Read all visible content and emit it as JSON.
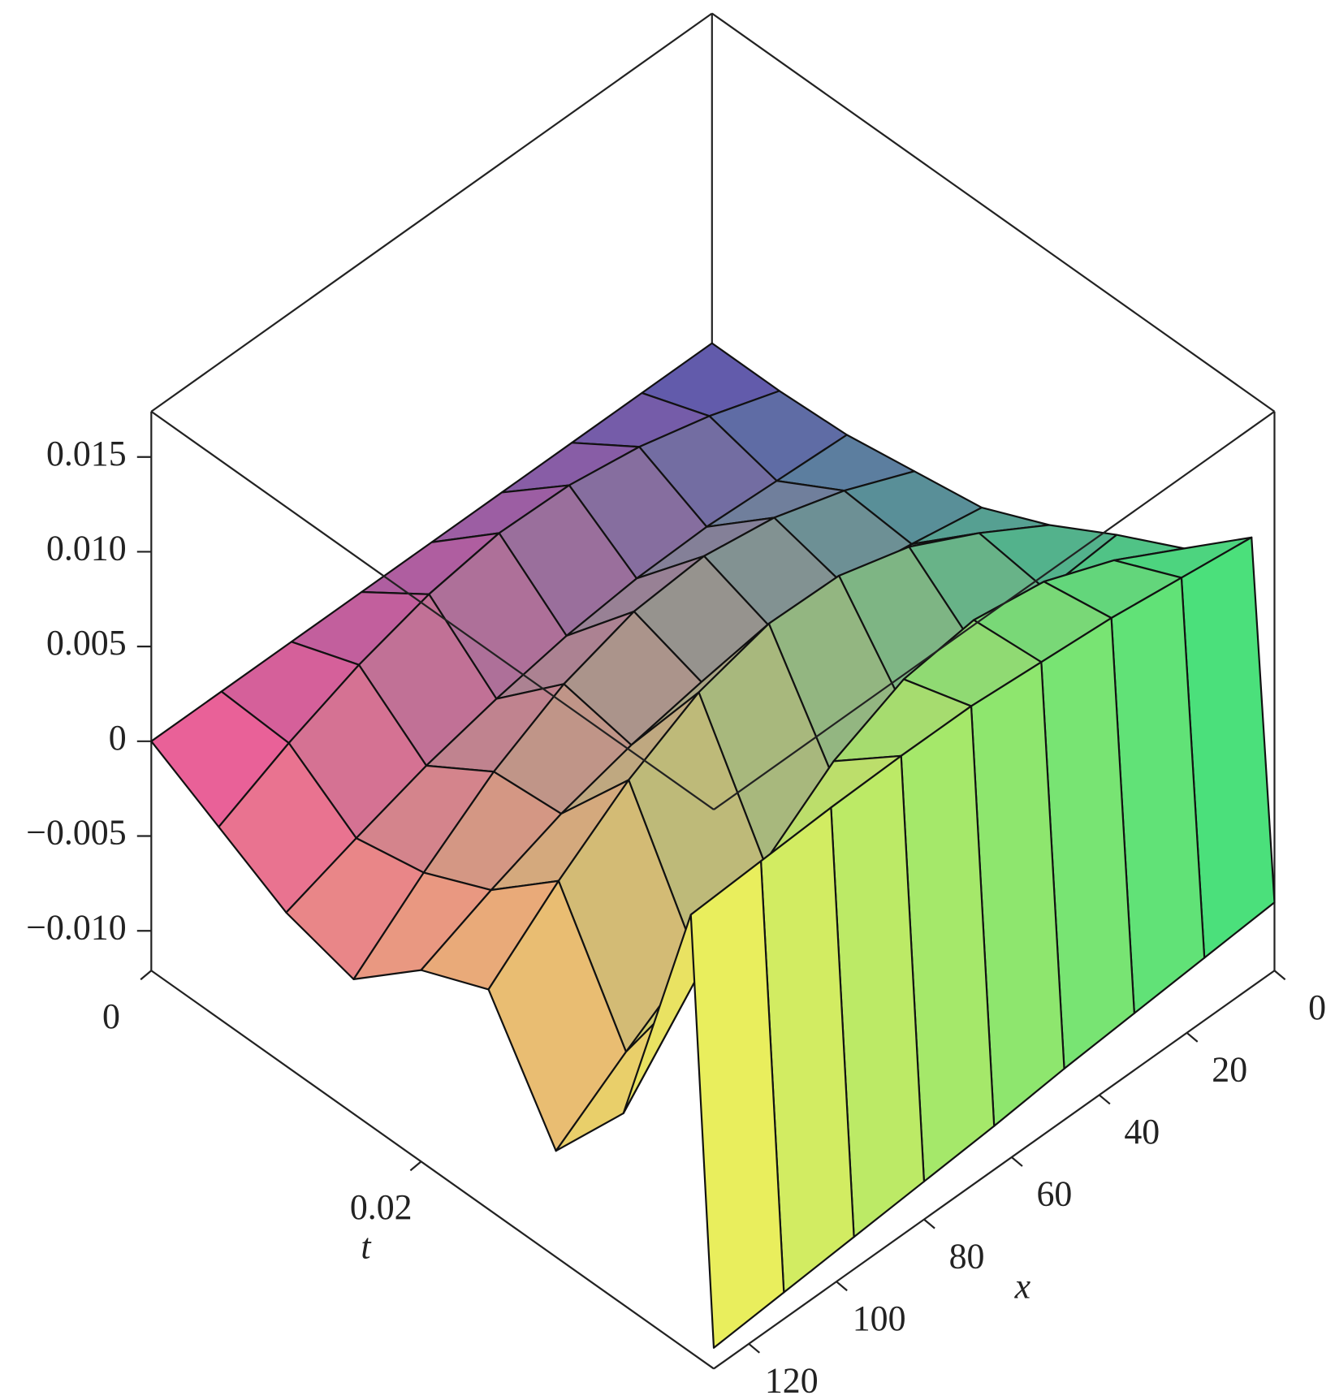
{
  "chart_data": {
    "type": "surface3d",
    "xlabel": "x",
    "tlabel": "t",
    "tlim": [
      0,
      0.0417
    ],
    "xlim": [
      0,
      128
    ],
    "zlim": [
      -0.0121,
      0.0174
    ],
    "tticks": [
      0,
      0.02
    ],
    "xticks": [
      0,
      20,
      40,
      60,
      80,
      100,
      120
    ],
    "zticks": [
      {
        "value": -0.01,
        "label": "−0.010"
      },
      {
        "value": -0.005,
        "label": "−0.005"
      },
      0,
      {
        "value": 0.005,
        "label": "0.005"
      },
      {
        "value": 0.01,
        "label": "0.010"
      },
      {
        "value": 0.015,
        "label": "0.015"
      }
    ],
    "corner_colors": [
      "#5a52b0",
      "#f2589a",
      "#3fe27c",
      "#f4f25a"
    ],
    "t": [
      0,
      0.005,
      0.01,
      0.015,
      0.02,
      0.025,
      0.03,
      0.035,
      0.04,
      0.0417
    ],
    "x": [
      0,
      16,
      32,
      48,
      64,
      80,
      96,
      112,
      128
    ],
    "z": [
      [
        0,
        0,
        0,
        0,
        0,
        0,
        0,
        0,
        0
      ],
      [
        0,
        0.0013,
        0.0023,
        0.0029,
        0.003,
        0.0024,
        0.0013,
        -0.0002,
        -0.002
      ],
      [
        0.0002,
        0.0004,
        0.0006,
        0.0005,
        0.0001,
        -0.0006,
        -0.0015,
        -0.0027,
        -0.004
      ],
      [
        0.0008,
        0.0024,
        0.0036,
        0.0042,
        0.0039,
        0.0027,
        0.0007,
        -0.002,
        -0.005
      ],
      [
        0.0014,
        0.0021,
        0.0027,
        0.0029,
        0.0027,
        0.002,
        0.001,
        -0.0004,
        -0.002
      ],
      [
        0.003,
        0.0052,
        0.0071,
        0.0082,
        0.0083,
        0.0073,
        0.0053,
        0.0026,
        -0.0005
      ],
      [
        0.005,
        0.0047,
        0.0042,
        0.0035,
        0.0023,
        0.0006,
        -0.0015,
        -0.0039,
        -0.0065
      ],
      [
        0.0068,
        0.0088,
        0.0103,
        0.0109,
        0.0104,
        0.0087,
        0.0059,
        0.0022,
        -0.002
      ],
      [
        0.0099,
        0.0104,
        0.0109,
        0.0112,
        0.0115,
        0.0115,
        0.0114,
        0.0112,
        0.011
      ],
      [
        -0.0085,
        -0.0088,
        -0.0091,
        -0.0094,
        -0.0098,
        -0.0101,
        -0.0104,
        -0.0107,
        -0.011
      ]
    ]
  }
}
